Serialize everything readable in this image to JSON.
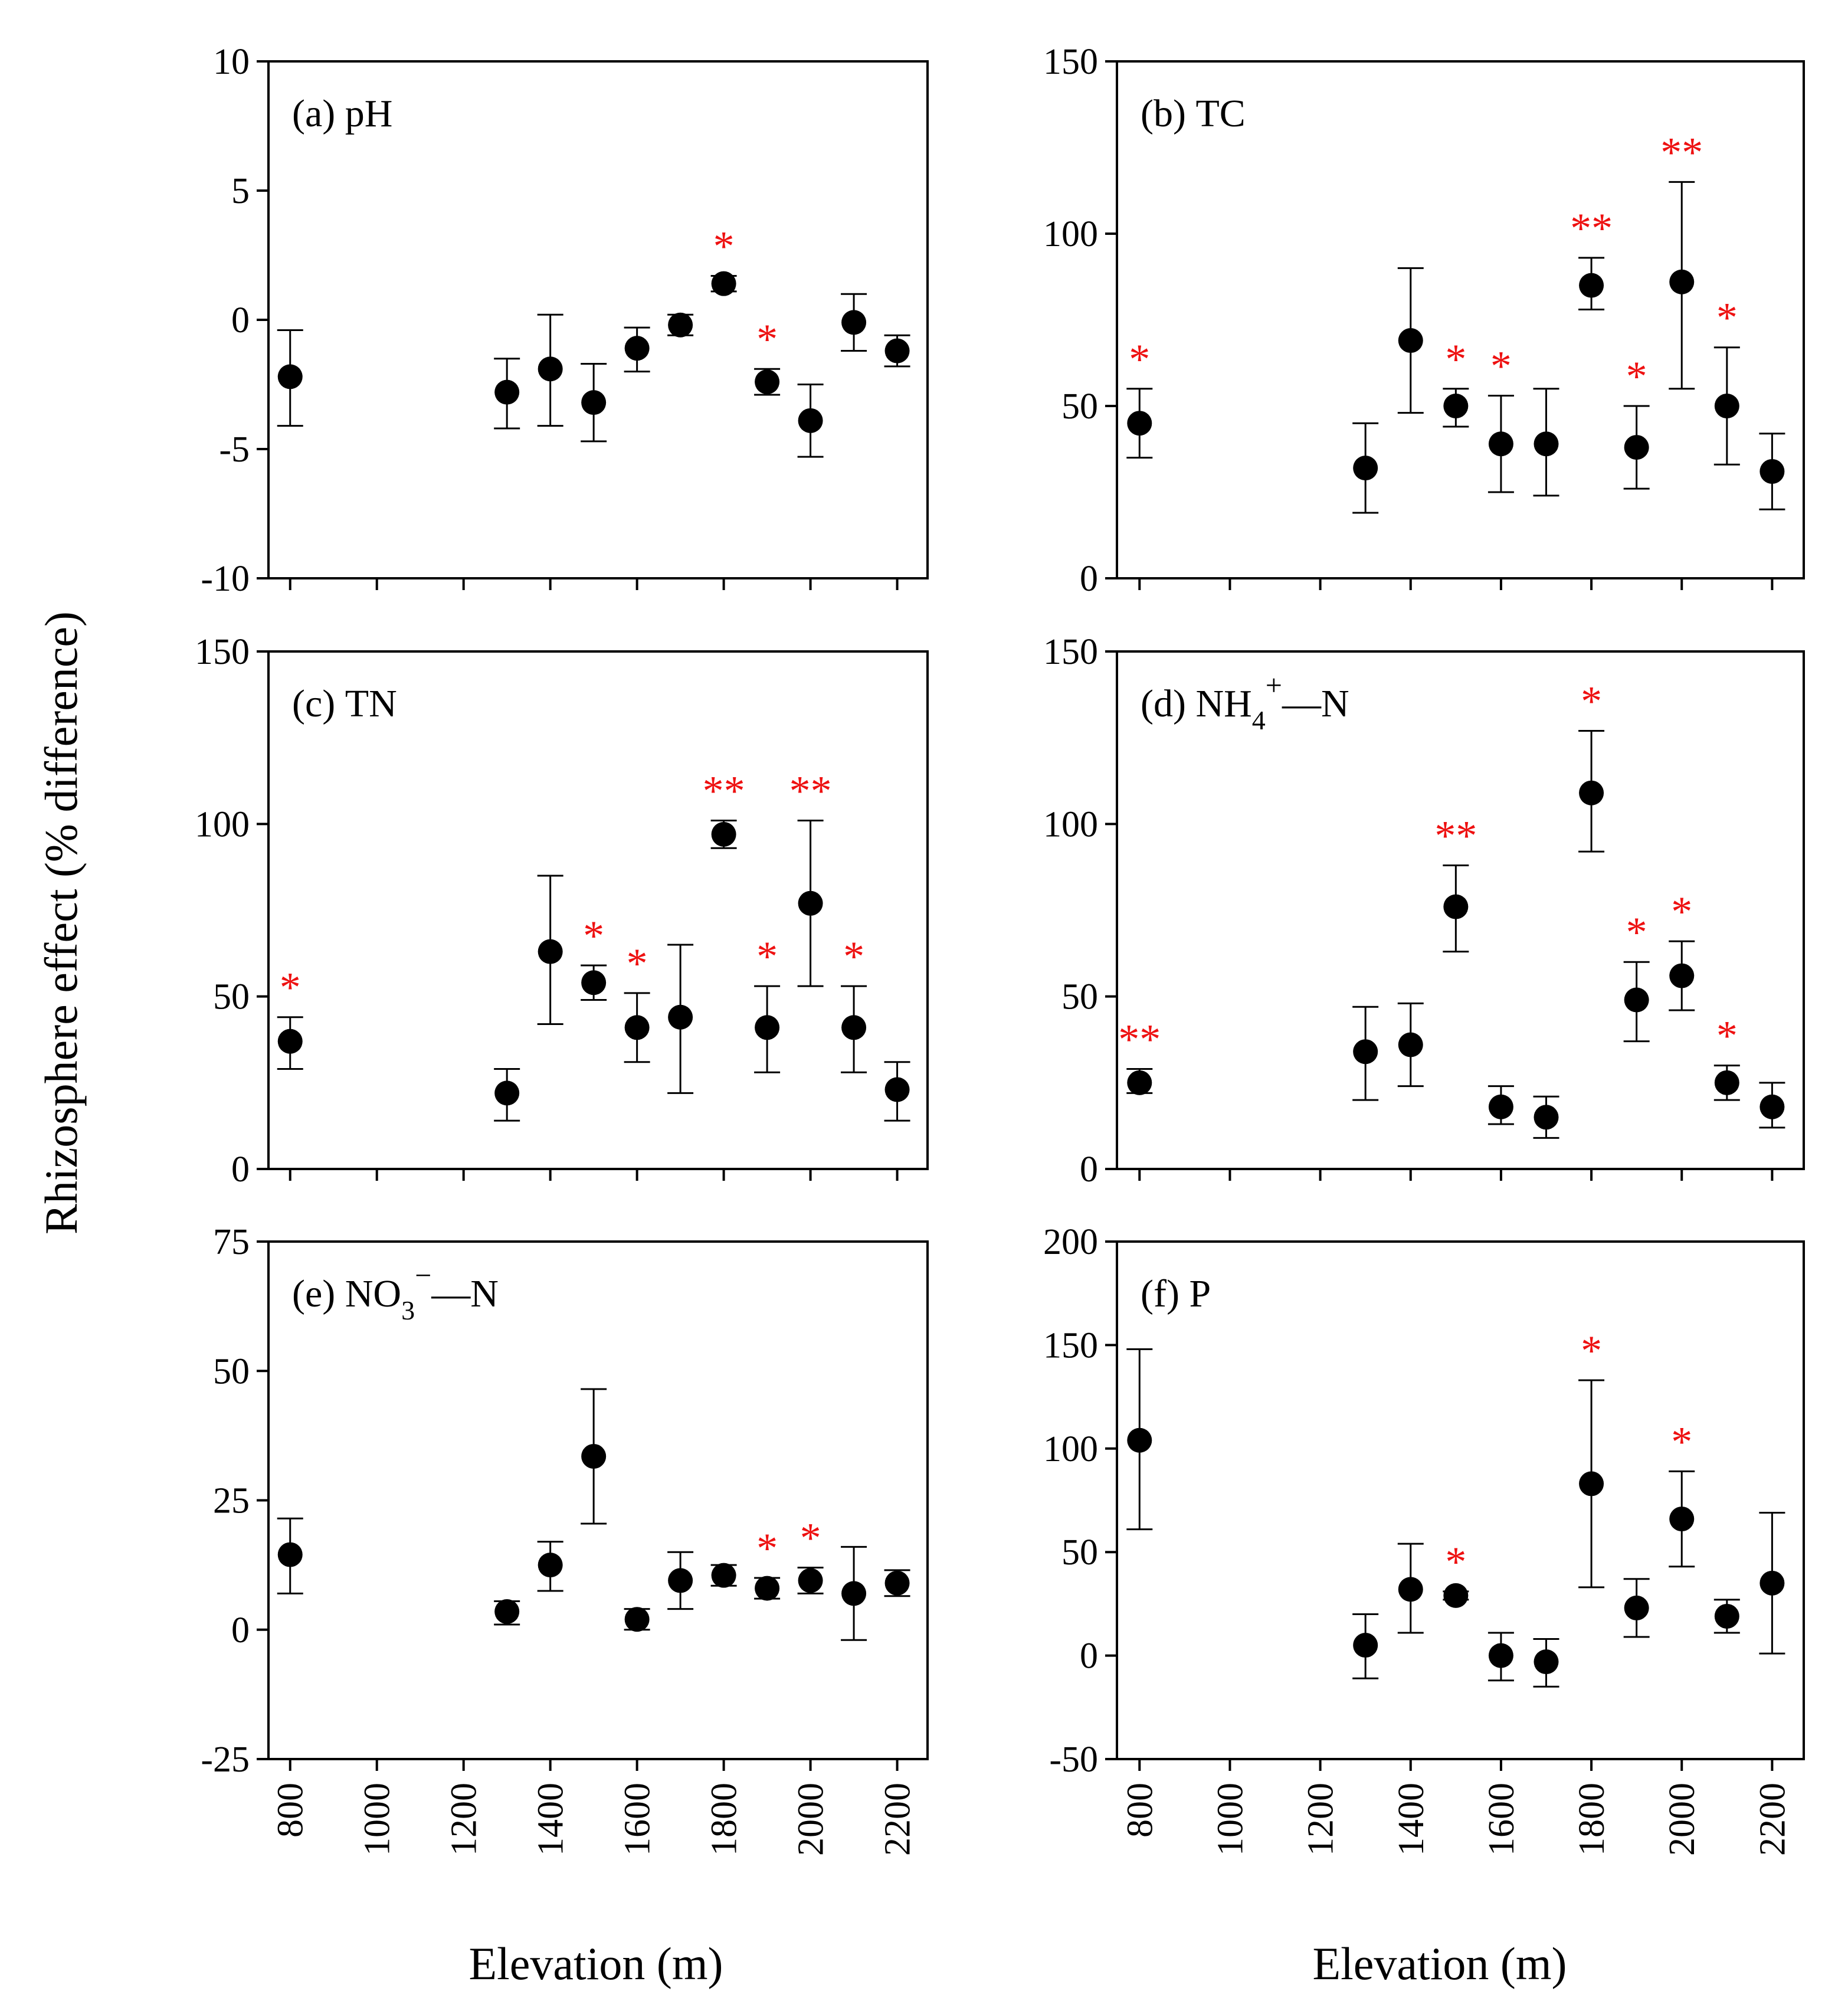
{
  "figure": {
    "ylabel": "Rhizosphere effect (% difference)",
    "xlabel": "Elevation (m)"
  },
  "colors": {
    "marker": "#000000",
    "significance": "#ee1111",
    "axes": "#000000"
  },
  "chart_data": [
    {
      "type": "scatter",
      "panel": "a",
      "title": "(a) pH",
      "title_prefix": "(a)",
      "title_main": "pH",
      "xlabel": "",
      "ylabel": "Rhizosphere effect (% difference)",
      "xlim": [
        750,
        2270
      ],
      "ylim": [
        -10,
        10
      ],
      "yticks": [
        -10,
        -5,
        0,
        5,
        10
      ],
      "ytick_labels": [
        "-10",
        "-5",
        "0",
        "5",
        "10"
      ],
      "xticks": [
        800,
        1000,
        1200,
        1400,
        1600,
        1800,
        2000,
        2200
      ],
      "xtick_labels": [],
      "points": [
        {
          "x": 800,
          "y": -2.2,
          "lo": -4.1,
          "hi": -0.4,
          "sig": ""
        },
        {
          "x": 1300,
          "y": -2.8,
          "lo": -4.2,
          "hi": -1.5,
          "sig": ""
        },
        {
          "x": 1400,
          "y": -1.9,
          "lo": -4.1,
          "hi": 0.2,
          "sig": ""
        },
        {
          "x": 1500,
          "y": -3.2,
          "lo": -4.7,
          "hi": -1.7,
          "sig": ""
        },
        {
          "x": 1600,
          "y": -1.1,
          "lo": -2.0,
          "hi": -0.3,
          "sig": ""
        },
        {
          "x": 1700,
          "y": -0.2,
          "lo": -0.6,
          "hi": 0.2,
          "sig": ""
        },
        {
          "x": 1800,
          "y": 1.4,
          "lo": 1.1,
          "hi": 1.7,
          "sig": "*"
        },
        {
          "x": 1900,
          "y": -2.4,
          "lo": -2.9,
          "hi": -1.9,
          "sig": "*"
        },
        {
          "x": 2000,
          "y": -3.9,
          "lo": -5.3,
          "hi": -2.5,
          "sig": ""
        },
        {
          "x": 2100,
          "y": -0.1,
          "lo": -1.2,
          "hi": 1.0,
          "sig": ""
        },
        {
          "x": 2200,
          "y": -1.2,
          "lo": -1.8,
          "hi": -0.6,
          "sig": ""
        }
      ]
    },
    {
      "type": "scatter",
      "panel": "b",
      "title": "(b) TC",
      "title_prefix": "(b)",
      "title_main": "TC",
      "xlabel": "",
      "ylabel": "Rhizosphere effect (% difference)",
      "xlim": [
        750,
        2270
      ],
      "ylim": [
        0,
        150
      ],
      "yticks": [
        0,
        50,
        100,
        150
      ],
      "ytick_labels": [
        "0",
        "50",
        "100",
        "150"
      ],
      "xticks": [
        800,
        1000,
        1200,
        1400,
        1600,
        1800,
        2000,
        2200
      ],
      "xtick_labels": [],
      "points": [
        {
          "x": 800,
          "y": 45,
          "lo": 35,
          "hi": 55,
          "sig": "*"
        },
        {
          "x": 1300,
          "y": 32,
          "lo": 19,
          "hi": 45,
          "sig": ""
        },
        {
          "x": 1400,
          "y": 69,
          "lo": 48,
          "hi": 90,
          "sig": ""
        },
        {
          "x": 1500,
          "y": 50,
          "lo": 44,
          "hi": 55,
          "sig": "*"
        },
        {
          "x": 1600,
          "y": 39,
          "lo": 25,
          "hi": 53,
          "sig": "*"
        },
        {
          "x": 1700,
          "y": 39,
          "lo": 24,
          "hi": 55,
          "sig": ""
        },
        {
          "x": 1800,
          "y": 85,
          "lo": 78,
          "hi": 93,
          "sig": "**"
        },
        {
          "x": 1900,
          "y": 38,
          "lo": 26,
          "hi": 50,
          "sig": "*"
        },
        {
          "x": 2000,
          "y": 86,
          "lo": 55,
          "hi": 115,
          "sig": "**"
        },
        {
          "x": 2100,
          "y": 50,
          "lo": 33,
          "hi": 67,
          "sig": "*"
        },
        {
          "x": 2200,
          "y": 31,
          "lo": 20,
          "hi": 42,
          "sig": ""
        }
      ]
    },
    {
      "type": "scatter",
      "panel": "c",
      "title": "(c) TN",
      "title_prefix": "(c)",
      "title_main": "TN",
      "xlabel": "",
      "ylabel": "Rhizosphere effect (% difference)",
      "xlim": [
        750,
        2270
      ],
      "ylim": [
        0,
        150
      ],
      "yticks": [
        0,
        50,
        100,
        150
      ],
      "ytick_labels": [
        "0",
        "50",
        "100",
        "150"
      ],
      "xticks": [
        800,
        1000,
        1200,
        1400,
        1600,
        1800,
        2000,
        2200
      ],
      "xtick_labels": [],
      "points": [
        {
          "x": 800,
          "y": 37,
          "lo": 29,
          "hi": 44,
          "sig": "*"
        },
        {
          "x": 1300,
          "y": 22,
          "lo": 14,
          "hi": 29,
          "sig": ""
        },
        {
          "x": 1400,
          "y": 63,
          "lo": 42,
          "hi": 85,
          "sig": ""
        },
        {
          "x": 1500,
          "y": 54,
          "lo": 49,
          "hi": 59,
          "sig": "*"
        },
        {
          "x": 1600,
          "y": 41,
          "lo": 31,
          "hi": 51,
          "sig": "*"
        },
        {
          "x": 1700,
          "y": 44,
          "lo": 22,
          "hi": 65,
          "sig": ""
        },
        {
          "x": 1800,
          "y": 97,
          "lo": 93,
          "hi": 101,
          "sig": "**"
        },
        {
          "x": 1900,
          "y": 41,
          "lo": 28,
          "hi": 53,
          "sig": "*"
        },
        {
          "x": 2000,
          "y": 77,
          "lo": 53,
          "hi": 101,
          "sig": "**"
        },
        {
          "x": 2100,
          "y": 41,
          "lo": 28,
          "hi": 53,
          "sig": "*"
        },
        {
          "x": 2200,
          "y": 23,
          "lo": 14,
          "hi": 31,
          "sig": ""
        }
      ]
    },
    {
      "type": "scatter",
      "panel": "d",
      "title": "(d) NH4+–N",
      "title_prefix": "(d)",
      "title_main": "NH",
      "title_sub": "4",
      "title_sup": "+",
      "title_suffix": "N",
      "xlabel": "",
      "ylabel": "Rhizosphere effect (% difference)",
      "xlim": [
        750,
        2270
      ],
      "ylim": [
        0,
        150
      ],
      "yticks": [
        0,
        50,
        100,
        150
      ],
      "ytick_labels": [
        "0",
        "50",
        "100",
        "150"
      ],
      "xticks": [
        800,
        1000,
        1200,
        1400,
        1600,
        1800,
        2000,
        2200
      ],
      "xtick_labels": [],
      "points": [
        {
          "x": 800,
          "y": 25,
          "lo": 22,
          "hi": 29,
          "sig": "**"
        },
        {
          "x": 1300,
          "y": 34,
          "lo": 20,
          "hi": 47,
          "sig": ""
        },
        {
          "x": 1400,
          "y": 36,
          "lo": 24,
          "hi": 48,
          "sig": ""
        },
        {
          "x": 1500,
          "y": 76,
          "lo": 63,
          "hi": 88,
          "sig": "**"
        },
        {
          "x": 1600,
          "y": 18,
          "lo": 13,
          "hi": 24,
          "sig": ""
        },
        {
          "x": 1700,
          "y": 15,
          "lo": 9,
          "hi": 21,
          "sig": ""
        },
        {
          "x": 1800,
          "y": 109,
          "lo": 92,
          "hi": 127,
          "sig": "*"
        },
        {
          "x": 1900,
          "y": 49,
          "lo": 37,
          "hi": 60,
          "sig": "*"
        },
        {
          "x": 2000,
          "y": 56,
          "lo": 46,
          "hi": 66,
          "sig": "*"
        },
        {
          "x": 2100,
          "y": 25,
          "lo": 20,
          "hi": 30,
          "sig": "*"
        },
        {
          "x": 2200,
          "y": 18,
          "lo": 12,
          "hi": 25,
          "sig": ""
        }
      ]
    },
    {
      "type": "scatter",
      "panel": "e",
      "title": "(e) NO3−–N",
      "title_prefix": "(e)",
      "title_main": "NO",
      "title_sub": "3",
      "title_sup": "−",
      "title_suffix": "N",
      "xlabel": "Elevation (m)",
      "ylabel": "Rhizosphere effect (% difference)",
      "xlim": [
        750,
        2270
      ],
      "ylim": [
        -25,
        75
      ],
      "yticks": [
        -25,
        0,
        25,
        50,
        75
      ],
      "ytick_labels": [
        "-25",
        "0",
        "25",
        "50",
        "75"
      ],
      "xticks": [
        800,
        1000,
        1200,
        1400,
        1600,
        1800,
        2000,
        2200
      ],
      "xtick_labels": [
        "800",
        "1000",
        "1200",
        "1400",
        "1600",
        "1800",
        "2000",
        "2200"
      ],
      "points": [
        {
          "x": 800,
          "y": 14.5,
          "lo": 7,
          "hi": 21.5,
          "sig": ""
        },
        {
          "x": 1300,
          "y": 3.5,
          "lo": 1,
          "hi": 5.5,
          "sig": ""
        },
        {
          "x": 1400,
          "y": 12.5,
          "lo": 7.5,
          "hi": 17,
          "sig": ""
        },
        {
          "x": 1500,
          "y": 33.5,
          "lo": 20.5,
          "hi": 46.5,
          "sig": ""
        },
        {
          "x": 1600,
          "y": 2,
          "lo": 0,
          "hi": 4,
          "sig": ""
        },
        {
          "x": 1700,
          "y": 9.5,
          "lo": 4,
          "hi": 15,
          "sig": ""
        },
        {
          "x": 1800,
          "y": 10.5,
          "lo": 8.5,
          "hi": 12.5,
          "sig": ""
        },
        {
          "x": 1900,
          "y": 8,
          "lo": 6,
          "hi": 10,
          "sig": "*"
        },
        {
          "x": 2000,
          "y": 9.5,
          "lo": 7,
          "hi": 12,
          "sig": "*"
        },
        {
          "x": 2100,
          "y": 7,
          "lo": -2,
          "hi": 16,
          "sig": ""
        },
        {
          "x": 2200,
          "y": 9,
          "lo": 6.5,
          "hi": 11.5,
          "sig": ""
        }
      ]
    },
    {
      "type": "scatter",
      "panel": "f",
      "title": "(f) P",
      "title_prefix": "(f)",
      "title_main": "P",
      "xlabel": "Elevation (m)",
      "ylabel": "Rhizosphere effect (% difference)",
      "xlim": [
        750,
        2270
      ],
      "ylim": [
        -50,
        200
      ],
      "yticks": [
        -50,
        0,
        50,
        100,
        150,
        200
      ],
      "ytick_labels": [
        "-50",
        "0",
        "50",
        "100",
        "150",
        "200"
      ],
      "xticks": [
        800,
        1000,
        1200,
        1400,
        1600,
        1800,
        2000,
        2200
      ],
      "xtick_labels": [
        "800",
        "1000",
        "1200",
        "1400",
        "1600",
        "1800",
        "2000",
        "2200"
      ],
      "points": [
        {
          "x": 800,
          "y": 104,
          "lo": 61,
          "hi": 148,
          "sig": ""
        },
        {
          "x": 1300,
          "y": 5,
          "lo": -11,
          "hi": 20,
          "sig": ""
        },
        {
          "x": 1400,
          "y": 32,
          "lo": 11,
          "hi": 54,
          "sig": ""
        },
        {
          "x": 1500,
          "y": 29,
          "lo": 27,
          "hi": 31,
          "sig": "*"
        },
        {
          "x": 1600,
          "y": 0,
          "lo": -12,
          "hi": 11,
          "sig": ""
        },
        {
          "x": 1700,
          "y": -3,
          "lo": -15,
          "hi": 8,
          "sig": ""
        },
        {
          "x": 1800,
          "y": 83,
          "lo": 33,
          "hi": 133,
          "sig": "*"
        },
        {
          "x": 1900,
          "y": 23,
          "lo": 9,
          "hi": 37,
          "sig": ""
        },
        {
          "x": 2000,
          "y": 66,
          "lo": 43,
          "hi": 89,
          "sig": "*"
        },
        {
          "x": 2100,
          "y": 19,
          "lo": 11,
          "hi": 27,
          "sig": ""
        },
        {
          "x": 2200,
          "y": 35,
          "lo": 1,
          "hi": 69,
          "sig": ""
        }
      ]
    }
  ]
}
